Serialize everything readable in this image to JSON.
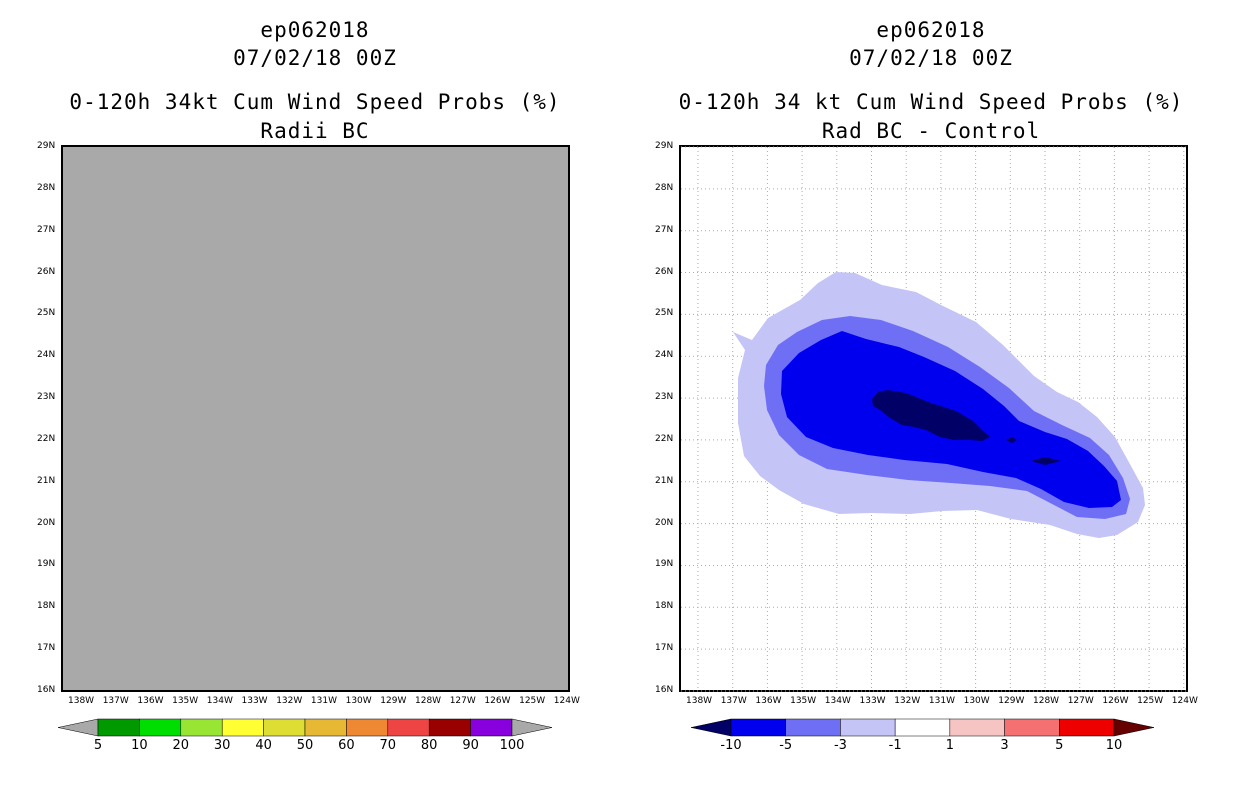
{
  "left_panel": {
    "storm_id": "ep062018",
    "datetime": "07/02/18 00Z",
    "title": "0-120h 34kt Cum Wind Speed Probs (%)",
    "subtitle": "Radii BC",
    "map_fill_color": "#a9a9a9",
    "colorbar": {
      "colors": [
        "#009900",
        "#00dd00",
        "#99e533",
        "#ffff33",
        "#dddd33",
        "#e6b833",
        "#ee8833",
        "#ee4444",
        "#990000",
        "#8800dd"
      ],
      "end_colors": [
        "#a9a9a9",
        "#a9a9a9"
      ],
      "labels": [
        "5",
        "10",
        "20",
        "30",
        "40",
        "50",
        "60",
        "70",
        "80",
        "90",
        "100"
      ]
    }
  },
  "right_panel": {
    "storm_id": "ep062018",
    "datetime": "07/02/18 00Z",
    "title": "0-120h 34 kt Cum Wind Speed Probs (%)",
    "subtitle": "Rad BC - Control",
    "contour_colors": {
      "lt_minus10": "#000066",
      "minus10_to_minus5": "#0000ee",
      "minus5_to_minus3": "#6f6ff5",
      "minus3_to_minus1": "#c4c4f7"
    },
    "colorbar": {
      "colors": [
        "#0000ee",
        "#6f6ff5",
        "#c4c4f7",
        "#ffffff",
        "#f7c4c4",
        "#f57070",
        "#ee0000"
      ],
      "end_colors": [
        "#000066",
        "#660000"
      ],
      "labels": [
        "-10",
        "-5",
        "-3",
        "-1",
        "1",
        "3",
        "5",
        "10"
      ]
    }
  },
  "axes": {
    "lat_labels": [
      "29N",
      "28N",
      "27N",
      "26N",
      "25N",
      "24N",
      "23N",
      "22N",
      "21N",
      "20N",
      "19N",
      "18N",
      "17N",
      "16N"
    ],
    "lon_labels": [
      "138W",
      "137W",
      "136W",
      "135W",
      "134W",
      "133W",
      "132W",
      "131W",
      "130W",
      "129W",
      "128W",
      "127W",
      "126W",
      "125W",
      "124W"
    ]
  }
}
